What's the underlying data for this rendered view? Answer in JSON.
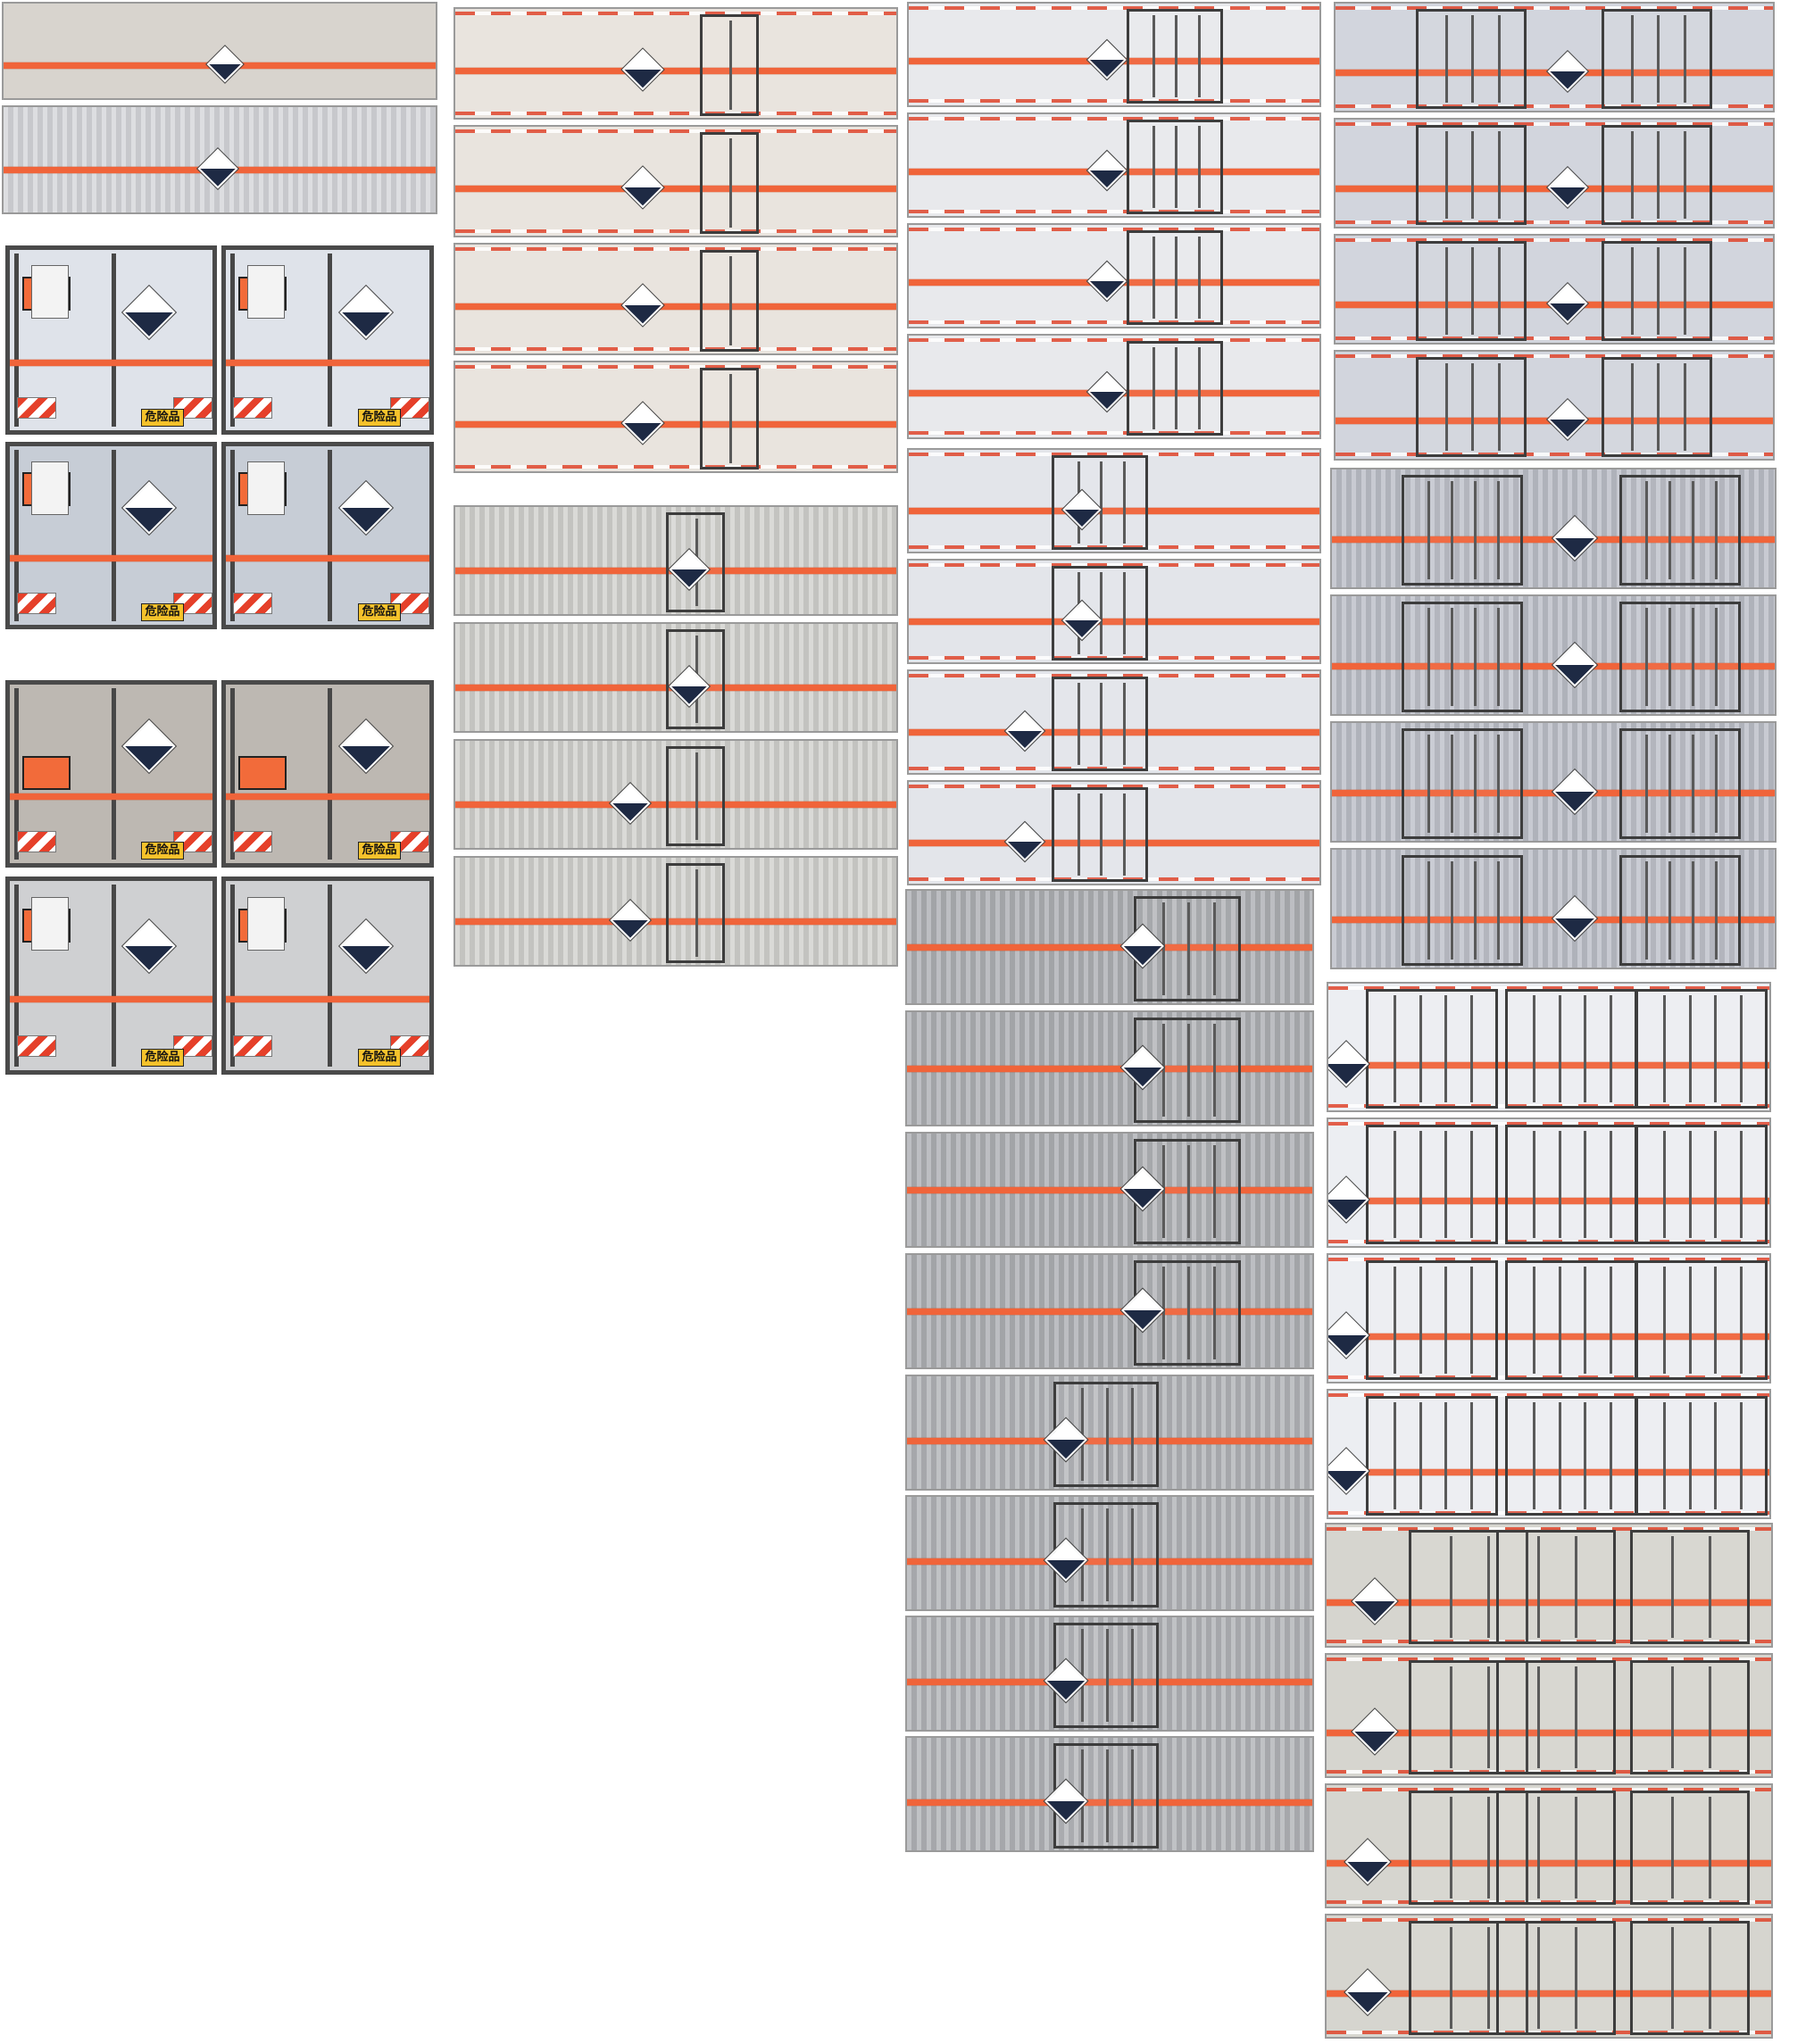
{
  "image": {
    "background": "#ffffff"
  },
  "colors": {
    "stripe": "#f0643a",
    "placard_orange": "#f26b3a",
    "hazard_diamond_dark": "#1e2a44",
    "danger_sign": "#f6c22b"
  },
  "rear_view_labels": {
    "danger_sign": "危险品"
  },
  "columns": [
    {
      "name": "column-1",
      "content": "2 side views and 8 rear views of van bodies"
    },
    {
      "name": "column-2",
      "content": "8 side views of van bodies"
    },
    {
      "name": "column-3",
      "content": "16 side views of van bodies"
    },
    {
      "name": "column-4",
      "content": "16 side views of van bodies"
    }
  ]
}
